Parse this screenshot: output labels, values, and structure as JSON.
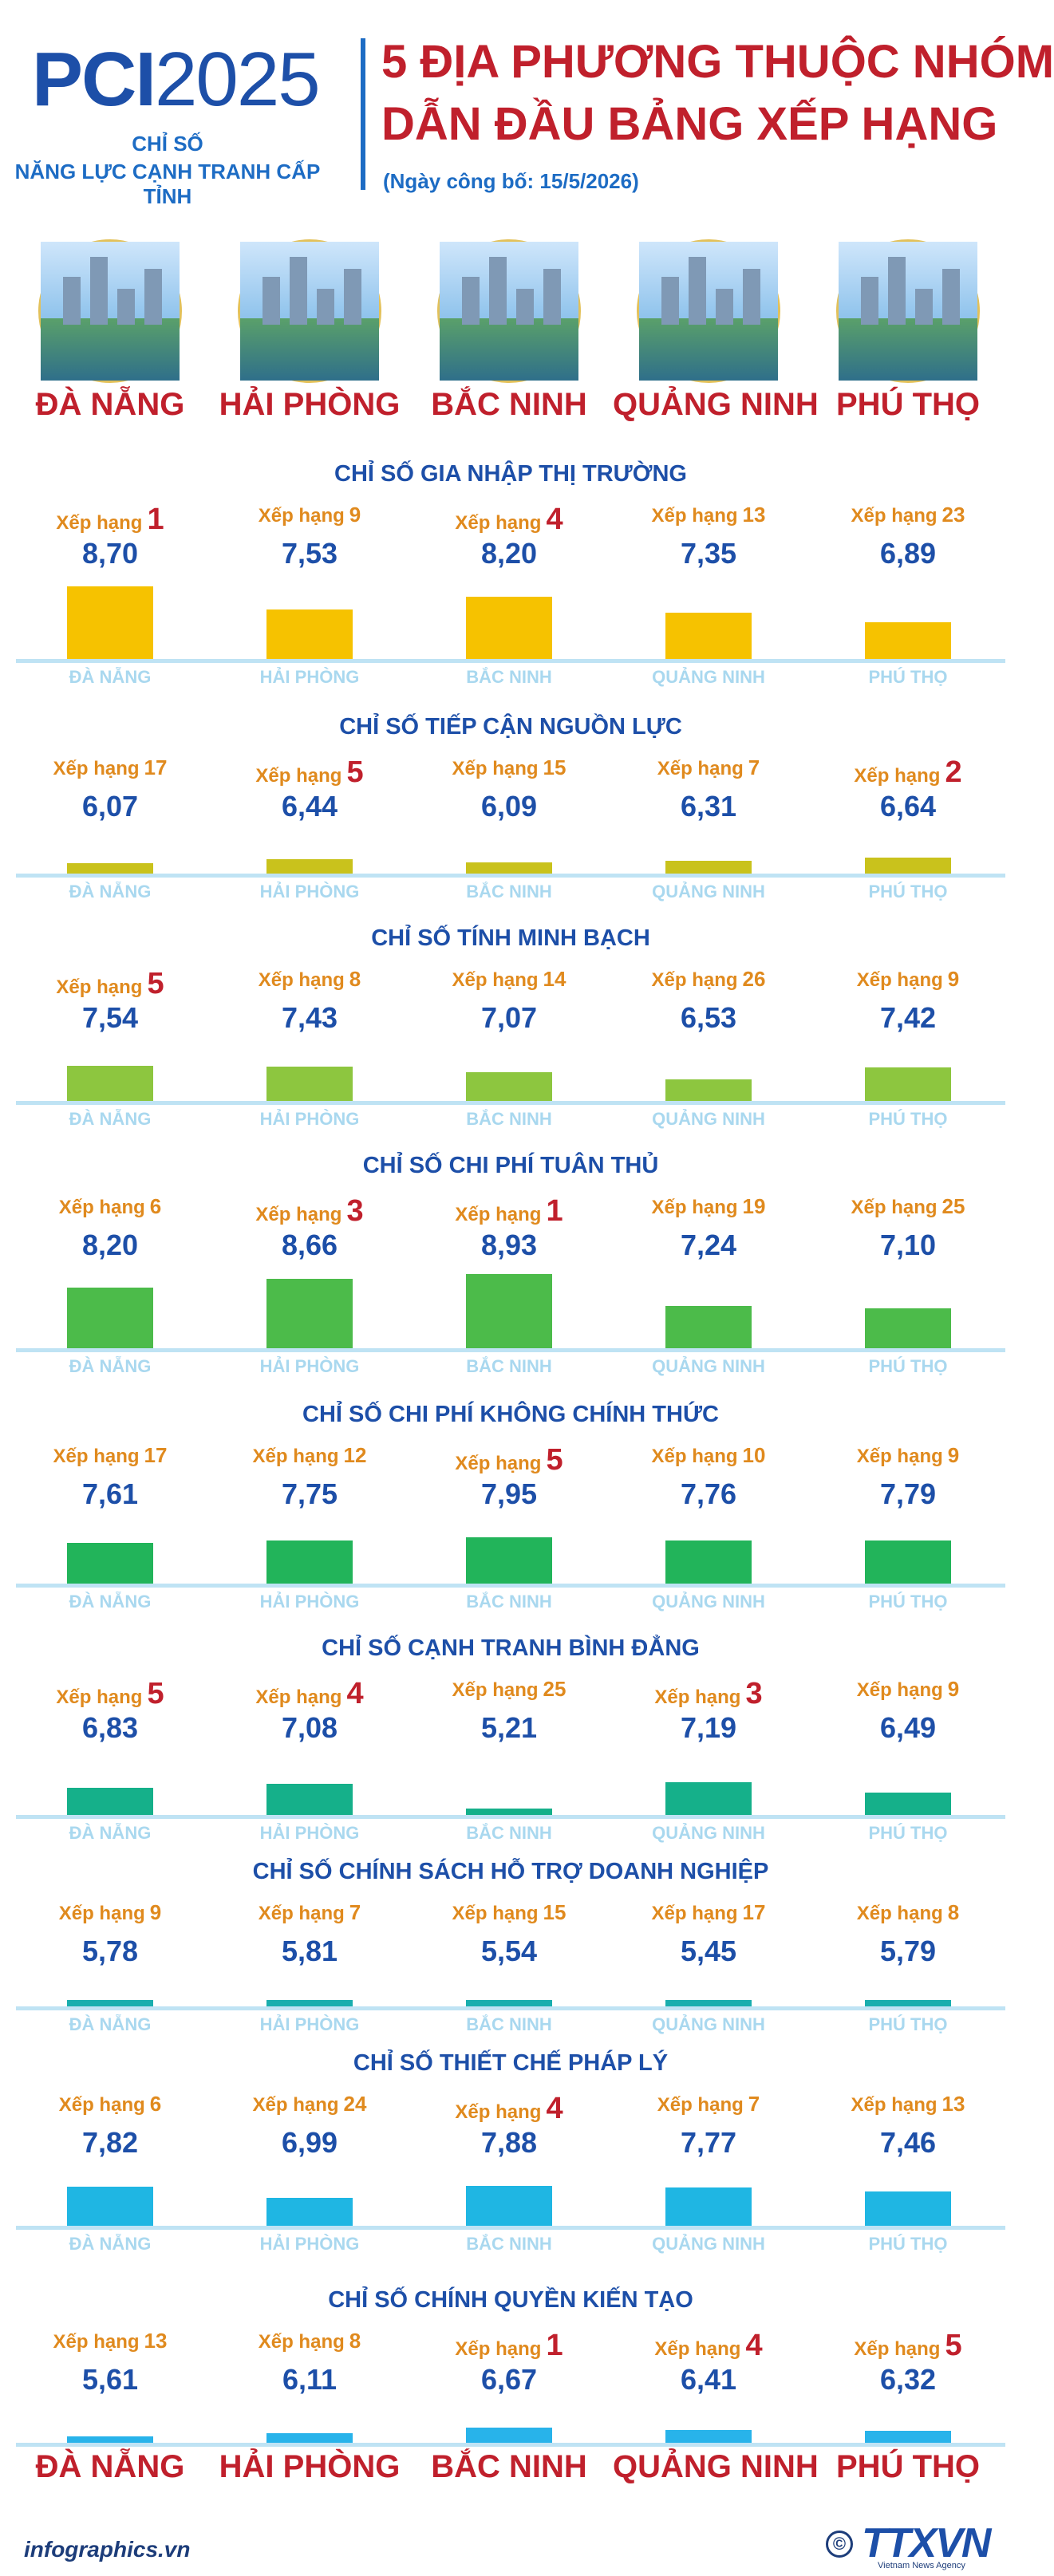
{
  "header": {
    "logo_bold": "PCI",
    "logo_year": "2025",
    "subtitle_1": "CHỈ SỐ",
    "subtitle_2": "NĂNG LỰC CẠNH TRANH CẤP TỈNH",
    "title_line1": "5 ĐỊA PHƯƠNG THUỘC NHÓM",
    "title_line2": "DẪN ĐẦU BẢNG XẾP HẠNG",
    "publish_date": "(Ngày công bố: 15/5/2026)"
  },
  "rank_label": "Xếp hạng",
  "chart_data": {
    "type": "bar",
    "categories": [
      "ĐÀ NẴNG",
      "HẢI PHÒNG",
      "BẮC NINH",
      "QUẢNG NINH",
      "PHÚ THỌ"
    ],
    "categories_footer": [
      "ĐÀ NẴNG",
      "HẢI PHÒNG",
      "BẮC NINH",
      "QUẢNG NINH",
      "PHÚ THỌ"
    ],
    "series": [
      {
        "name": "CHỈ SỐ GIA NHẬP THỊ TRƯỜNG",
        "values": [
          8.7,
          7.53,
          8.2,
          7.35,
          6.89
        ],
        "labels": [
          "8,70",
          "7,53",
          "8,20",
          "7,35",
          "6,89"
        ],
        "ranks": [
          1,
          9,
          4,
          13,
          23
        ],
        "color": "#f6c200"
      },
      {
        "name": "CHỈ SỐ TIẾP CẬN NGUỒN LỰC",
        "values": [
          6.07,
          6.44,
          6.09,
          6.31,
          6.64
        ],
        "labels": [
          "6,07",
          "6,44",
          "6,09",
          "6,31",
          "6,64"
        ],
        "ranks": [
          17,
          5,
          15,
          7,
          2
        ],
        "color": "#c9c21c"
      },
      {
        "name": "CHỈ SỐ TÍNH MINH BẠCH",
        "values": [
          7.54,
          7.43,
          7.07,
          6.53,
          7.42
        ],
        "labels": [
          "7,54",
          "7,43",
          "7,07",
          "6,53",
          "7,42"
        ],
        "ranks": [
          5,
          8,
          14,
          26,
          9
        ],
        "color": "#8dc63f"
      },
      {
        "name": "CHỈ SỐ CHI PHÍ TUÂN THỦ",
        "values": [
          8.2,
          8.66,
          8.93,
          7.24,
          7.1
        ],
        "labels": [
          "8,20",
          "8,66",
          "8,93",
          "7,24",
          "7,10"
        ],
        "ranks": [
          6,
          3,
          1,
          19,
          25
        ],
        "color": "#4cbb4a"
      },
      {
        "name": "CHỈ SỐ CHI PHÍ KHÔNG CHÍNH THỨC",
        "values": [
          7.61,
          7.75,
          7.95,
          7.76,
          7.79
        ],
        "labels": [
          "7,61",
          "7,75",
          "7,95",
          "7,76",
          "7,79"
        ],
        "ranks": [
          17,
          12,
          5,
          10,
          9
        ],
        "color": "#22b45a"
      },
      {
        "name": "CHỈ SỐ CẠNH TRANH BÌNH ĐẲNG",
        "values": [
          6.83,
          7.08,
          5.21,
          7.19,
          6.49
        ],
        "labels": [
          "6,83",
          "7,08",
          "5,21",
          "7,19",
          "6,49"
        ],
        "ranks": [
          5,
          4,
          25,
          3,
          9
        ],
        "color": "#15b08a"
      },
      {
        "name": "CHỈ SỐ CHÍNH SÁCH HỖ TRỢ DOANH NGHIỆP",
        "values": [
          5.78,
          5.81,
          5.54,
          5.45,
          5.79
        ],
        "labels": [
          "5,78",
          "5,81",
          "5,54",
          "5,45",
          "5,79"
        ],
        "ranks": [
          9,
          7,
          15,
          17,
          8
        ],
        "color": "#19aeae"
      },
      {
        "name": "CHỈ SỐ THIẾT CHẾ PHÁP LÝ",
        "values": [
          7.82,
          6.99,
          7.88,
          7.77,
          7.46
        ],
        "labels": [
          "7,82",
          "6,99",
          "7,88",
          "7,77",
          "7,46"
        ],
        "ranks": [
          6,
          24,
          4,
          7,
          13
        ],
        "color": "#1fb6e3"
      },
      {
        "name": "CHỈ SỐ CHÍNH QUYỀN KIẾN TẠO",
        "values": [
          5.61,
          6.11,
          6.67,
          6.41,
          6.32
        ],
        "labels": [
          "5,61",
          "6,11",
          "6,67",
          "6,41",
          "6,32"
        ],
        "ranks": [
          13,
          8,
          1,
          4,
          5
        ],
        "color": "#28b3ea"
      }
    ]
  },
  "footer": {
    "site": "infographics.vn",
    "copyright": "©",
    "brand": "TTXVN",
    "agency": "Vietnam News Agency"
  }
}
